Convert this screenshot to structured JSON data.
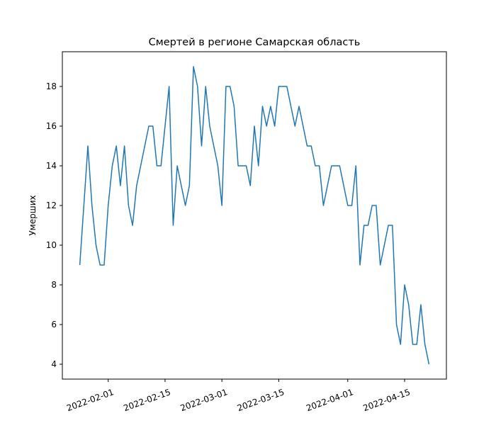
{
  "chart_data": {
    "type": "line",
    "title": "Смертей в регионе Самарская область",
    "ylabel": "Умерших",
    "x": [
      "2022-01-25",
      "2022-01-26",
      "2022-01-27",
      "2022-01-28",
      "2022-01-29",
      "2022-01-30",
      "2022-01-31",
      "2022-02-01",
      "2022-02-02",
      "2022-02-03",
      "2022-02-04",
      "2022-02-05",
      "2022-02-06",
      "2022-02-07",
      "2022-02-08",
      "2022-02-09",
      "2022-02-10",
      "2022-02-11",
      "2022-02-12",
      "2022-02-13",
      "2022-02-14",
      "2022-02-15",
      "2022-02-16",
      "2022-02-17",
      "2022-02-18",
      "2022-02-19",
      "2022-02-20",
      "2022-02-21",
      "2022-02-22",
      "2022-02-23",
      "2022-02-24",
      "2022-02-25",
      "2022-02-26",
      "2022-02-27",
      "2022-02-28",
      "2022-03-01",
      "2022-03-02",
      "2022-03-03",
      "2022-03-04",
      "2022-03-05",
      "2022-03-06",
      "2022-03-07",
      "2022-03-08",
      "2022-03-09",
      "2022-03-10",
      "2022-03-11",
      "2022-03-12",
      "2022-03-13",
      "2022-03-14",
      "2022-03-15",
      "2022-03-16",
      "2022-03-17",
      "2022-03-18",
      "2022-03-19",
      "2022-03-20",
      "2022-03-21",
      "2022-03-22",
      "2022-03-23",
      "2022-03-24",
      "2022-03-25",
      "2022-03-26",
      "2022-03-27",
      "2022-03-28",
      "2022-03-29",
      "2022-03-30",
      "2022-03-31",
      "2022-04-01",
      "2022-04-02",
      "2022-04-03",
      "2022-04-04",
      "2022-04-05",
      "2022-04-06",
      "2022-04-07",
      "2022-04-08",
      "2022-04-09",
      "2022-04-10",
      "2022-04-11",
      "2022-04-12",
      "2022-04-13",
      "2022-04-14",
      "2022-04-15",
      "2022-04-16",
      "2022-04-17",
      "2022-04-18",
      "2022-04-19",
      "2022-04-20",
      "2022-04-21"
    ],
    "series": [
      {
        "color": "#1f77b4",
        "values": [
          9,
          12,
          15,
          12,
          10,
          9,
          9,
          12,
          14,
          15,
          13,
          15,
          12,
          11,
          13,
          14,
          15,
          16,
          16,
          14,
          14,
          16,
          18,
          11,
          14,
          13,
          12,
          13,
          19,
          18,
          15,
          18,
          16,
          15,
          14,
          12,
          18,
          18,
          17,
          14,
          14,
          14,
          13,
          16,
          14,
          17,
          16,
          17,
          16,
          18,
          18,
          18,
          17,
          16,
          17,
          16,
          15,
          15,
          14,
          14,
          12,
          13,
          14,
          14,
          14,
          13,
          12,
          12,
          14,
          9,
          11,
          11,
          12,
          12,
          9,
          10,
          11,
          11,
          6,
          5,
          8,
          7,
          5,
          5,
          7,
          5,
          4
        ]
      }
    ],
    "xlim": [
      "2022-01-20T17:00",
      "2022-04-25T07:00"
    ],
    "xticks": [
      "2022-02-01",
      "2022-02-15",
      "2022-03-01",
      "2022-03-15",
      "2022-04-01",
      "2022-04-15"
    ],
    "ylim": [
      3.25,
      19.75
    ],
    "yticks": [
      4,
      6,
      8,
      10,
      12,
      14,
      16,
      18
    ]
  }
}
